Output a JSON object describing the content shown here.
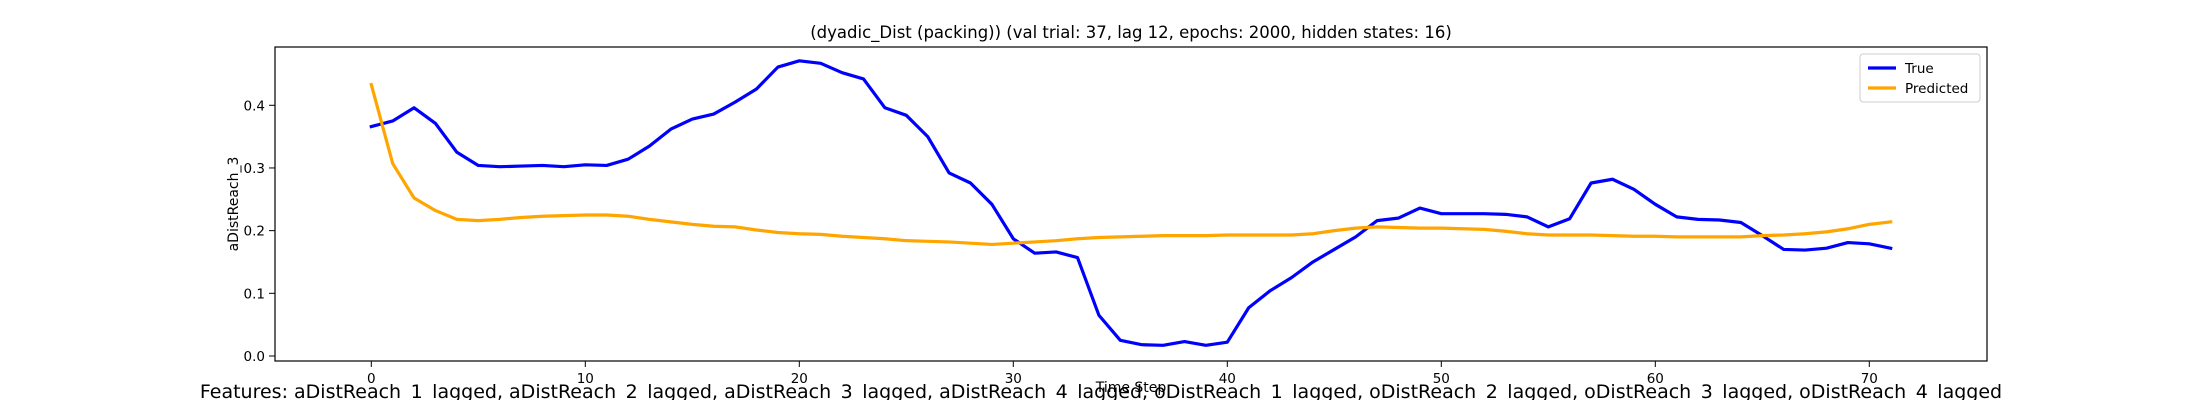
{
  "chart_data": {
    "type": "line",
    "title": "(dyadic_Dist (packing)) (val trial: 37, lag 12, epochs: 2000, hidden states: 16)",
    "xlabel": "Time Step",
    "ylabel": "aDistReach_3",
    "xlim": [
      -4.5,
      75.5
    ],
    "ylim": [
      -0.008,
      0.493
    ],
    "xticks": [
      0,
      10,
      20,
      30,
      40,
      50,
      60,
      70
    ],
    "yticks": [
      0.0,
      0.1,
      0.2,
      0.3,
      0.4
    ],
    "ytick_labels": [
      "0.0",
      "0.1",
      "0.2",
      "0.3",
      "0.4"
    ],
    "grid": false,
    "legend_position": "top-right",
    "series": [
      {
        "name": "True",
        "color": "#0000ff",
        "x": [
          0,
          1,
          2,
          3,
          4,
          5,
          6,
          7,
          8,
          9,
          10,
          11,
          12,
          13,
          14,
          15,
          16,
          17,
          18,
          19,
          20,
          21,
          22,
          23,
          24,
          25,
          26,
          27,
          28,
          29,
          30,
          31,
          32,
          33,
          34,
          35,
          36,
          37,
          38,
          39,
          40,
          41,
          42,
          43,
          44,
          45,
          46,
          47,
          48,
          49,
          50,
          51,
          52,
          53,
          54,
          55,
          56,
          57,
          58,
          59,
          60,
          61,
          62,
          63,
          64,
          65,
          66,
          67,
          68,
          69,
          70,
          71
        ],
        "values": [
          0.366,
          0.375,
          0.396,
          0.371,
          0.325,
          0.304,
          0.302,
          0.303,
          0.304,
          0.302,
          0.305,
          0.304,
          0.314,
          0.335,
          0.362,
          0.378,
          0.386,
          0.405,
          0.426,
          0.461,
          0.471,
          0.467,
          0.452,
          0.442,
          0.396,
          0.384,
          0.35,
          0.292,
          0.276,
          0.242,
          0.187,
          0.164,
          0.166,
          0.157,
          0.065,
          0.025,
          0.018,
          0.017,
          0.023,
          0.017,
          0.022,
          0.077,
          0.104,
          0.125,
          0.15,
          0.17,
          0.19,
          0.216,
          0.22,
          0.236,
          0.227,
          0.227,
          0.227,
          0.226,
          0.222,
          0.206,
          0.219,
          0.276,
          0.282,
          0.266,
          0.242,
          0.222,
          0.218,
          0.217,
          0.213,
          0.192,
          0.17,
          0.169,
          0.172,
          0.181,
          0.179,
          0.172
        ]
      },
      {
        "name": "Predicted",
        "color": "#ffa500",
        "x": [
          0,
          1,
          2,
          3,
          4,
          5,
          6,
          7,
          8,
          9,
          10,
          11,
          12,
          13,
          14,
          15,
          16,
          17,
          18,
          19,
          20,
          21,
          22,
          23,
          24,
          25,
          26,
          27,
          28,
          29,
          30,
          31,
          32,
          33,
          34,
          35,
          36,
          37,
          38,
          39,
          40,
          41,
          42,
          43,
          44,
          45,
          46,
          47,
          48,
          49,
          50,
          51,
          52,
          53,
          54,
          55,
          56,
          57,
          58,
          59,
          60,
          61,
          62,
          63,
          64,
          65,
          66,
          67,
          68,
          69,
          70,
          71
        ],
        "values": [
          0.433,
          0.307,
          0.252,
          0.232,
          0.218,
          0.216,
          0.218,
          0.221,
          0.223,
          0.224,
          0.225,
          0.225,
          0.223,
          0.218,
          0.214,
          0.21,
          0.207,
          0.206,
          0.201,
          0.197,
          0.195,
          0.194,
          0.191,
          0.189,
          0.187,
          0.184,
          0.183,
          0.182,
          0.18,
          0.178,
          0.18,
          0.182,
          0.184,
          0.187,
          0.189,
          0.19,
          0.191,
          0.192,
          0.192,
          0.192,
          0.193,
          0.193,
          0.193,
          0.193,
          0.195,
          0.2,
          0.204,
          0.206,
          0.205,
          0.204,
          0.204,
          0.203,
          0.202,
          0.199,
          0.195,
          0.193,
          0.193,
          0.193,
          0.192,
          0.191,
          0.191,
          0.19,
          0.19,
          0.19,
          0.19,
          0.192,
          0.193,
          0.195,
          0.198,
          0.203,
          0.21,
          0.214
        ]
      }
    ],
    "caption": "Features: aDistReach_1_lagged, aDistReach_2_lagged, aDistReach_3_lagged, aDistReach_4_lagged, oDistReach_1_lagged, oDistReach_2_lagged, oDistReach_3_lagged, oDistReach_4_lagged"
  }
}
